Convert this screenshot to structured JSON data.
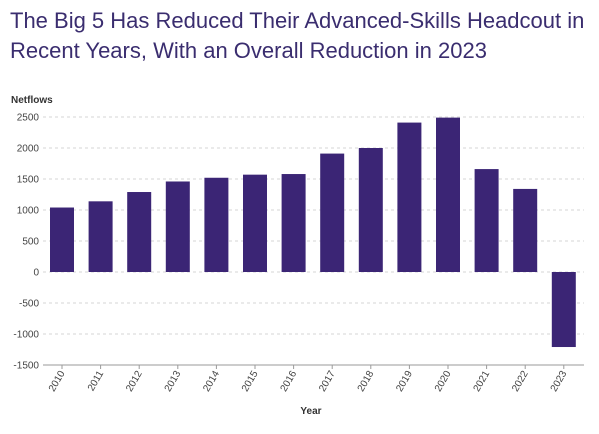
{
  "chart_data": {
    "type": "bar",
    "title": "The Big 5 Has Reduced Their Advanced-Skills Headcout in Recent Years, With an Overall Reduction in 2023",
    "xlabel": "Year",
    "ylabel": "Netflows",
    "categories": [
      "2010",
      "2011",
      "2012",
      "2013",
      "2014",
      "2015",
      "2016",
      "2017",
      "2018",
      "2019",
      "2020",
      "2021",
      "2022",
      "2023"
    ],
    "values": [
      1040,
      1140,
      1290,
      1460,
      1520,
      1570,
      1580,
      1910,
      2000,
      2410,
      2490,
      1660,
      1340,
      -1210
    ],
    "ylim": [
      -1500,
      2500
    ],
    "yticks": [
      2500,
      2000,
      1500,
      1000,
      500,
      0,
      -500,
      -1000,
      -1500
    ],
    "ytick_labels": [
      "2500",
      "2000",
      "1500",
      "1000",
      "500",
      "0",
      "-500",
      "-1000",
      "-1500"
    ],
    "grid": true,
    "colors": {
      "bar": "#3b2575",
      "grid": "#d6d6d6",
      "axis": "#9a9a9a"
    }
  }
}
